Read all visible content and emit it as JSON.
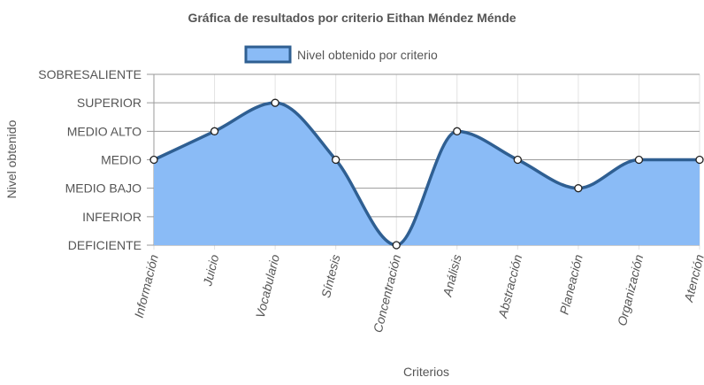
{
  "chart_data": {
    "type": "line",
    "title": "Gráfica de resultados por criterio Eithan Méndez Ménde",
    "xlabel": "Criterios",
    "ylabel": "Nivel obtenido",
    "y_levels": [
      "DEFICIENTE",
      "INFERIOR",
      "MEDIO BAJO",
      "MEDIO",
      "MEDIO ALTO",
      "SUPERIOR",
      "SOBRESALIENTE"
    ],
    "categories": [
      "Información",
      "Juicio",
      "Vocabulario",
      "Síntesis",
      "Concentración",
      "Análisis",
      "Abstracción",
      "Planeación",
      "Organización",
      "Atención"
    ],
    "series": [
      {
        "name": "Nivel obtenido por criterio",
        "values": [
          3,
          4,
          5,
          3,
          0,
          4,
          3,
          2,
          3,
          3
        ],
        "color": "#2f5f92",
        "fill": "#8abbf6"
      }
    ],
    "ylim": [
      0,
      6
    ],
    "fill": true,
    "grid": true,
    "legend_position": "top"
  }
}
